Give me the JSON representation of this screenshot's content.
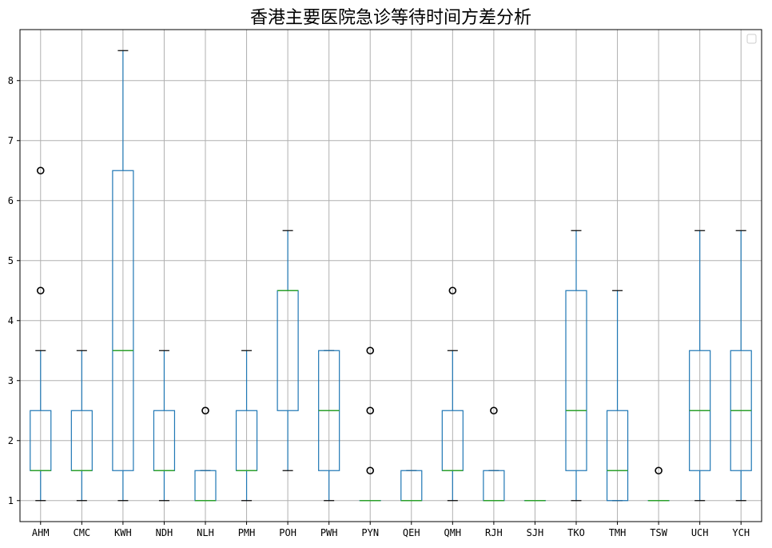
{
  "chart_data": {
    "type": "box",
    "title": "香港主要医院急诊等待时间方差分析",
    "xlabel": "",
    "ylabel": "",
    "ylim": [
      0.65,
      8.85
    ],
    "yticks": [
      1,
      2,
      3,
      4,
      5,
      6,
      7,
      8
    ],
    "grid": true,
    "legend": "top-right (empty)",
    "colors": {
      "box": "#1f77b4",
      "median": "#2ca02c",
      "whisker": "#1f77b4",
      "outlier": "#000000",
      "grid": "#b0b0b0"
    },
    "categories": [
      "AHM",
      "CMC",
      "KWH",
      "NDH",
      "NLH",
      "PMH",
      "POH",
      "PWH",
      "PYN",
      "QEH",
      "QMH",
      "RJH",
      "SJH",
      "TKO",
      "TMH",
      "TSW",
      "UCH",
      "YCH"
    ],
    "boxes": [
      {
        "label": "AHM",
        "whislo": 1.0,
        "q1": 1.5,
        "med": 1.5,
        "q3": 2.5,
        "whishi": 3.5,
        "fliers": [
          4.5,
          6.5
        ]
      },
      {
        "label": "CMC",
        "whislo": 1.0,
        "q1": 1.5,
        "med": 1.5,
        "q3": 2.5,
        "whishi": 3.5,
        "fliers": []
      },
      {
        "label": "KWH",
        "whislo": 1.0,
        "q1": 1.5,
        "med": 3.5,
        "q3": 6.5,
        "whishi": 8.5,
        "fliers": []
      },
      {
        "label": "NDH",
        "whislo": 1.0,
        "q1": 1.5,
        "med": 1.5,
        "q3": 2.5,
        "whishi": 3.5,
        "fliers": []
      },
      {
        "label": "NLH",
        "whislo": 1.0,
        "q1": 1.0,
        "med": 1.0,
        "q3": 1.5,
        "whishi": 1.5,
        "fliers": [
          2.5
        ]
      },
      {
        "label": "PMH",
        "whislo": 1.0,
        "q1": 1.5,
        "med": 1.5,
        "q3": 2.5,
        "whishi": 3.5,
        "fliers": []
      },
      {
        "label": "POH",
        "whislo": 1.5,
        "q1": 2.5,
        "med": 4.5,
        "q3": 4.5,
        "whishi": 5.5,
        "fliers": []
      },
      {
        "label": "PWH",
        "whislo": 1.0,
        "q1": 1.5,
        "med": 2.5,
        "q3": 3.5,
        "whishi": 3.5,
        "fliers": []
      },
      {
        "label": "PYN",
        "whislo": 1.0,
        "q1": 1.0,
        "med": 1.0,
        "q3": 1.0,
        "whishi": 1.0,
        "fliers": [
          1.5,
          2.5,
          3.5
        ]
      },
      {
        "label": "QEH",
        "whislo": 1.0,
        "q1": 1.0,
        "med": 1.0,
        "q3": 1.5,
        "whishi": 1.5,
        "fliers": []
      },
      {
        "label": "QMH",
        "whislo": 1.0,
        "q1": 1.5,
        "med": 1.5,
        "q3": 2.5,
        "whishi": 3.5,
        "fliers": [
          4.5
        ]
      },
      {
        "label": "RJH",
        "whislo": 1.0,
        "q1": 1.0,
        "med": 1.0,
        "q3": 1.5,
        "whishi": 1.5,
        "fliers": [
          2.5
        ]
      },
      {
        "label": "SJH",
        "whislo": 1.0,
        "q1": 1.0,
        "med": 1.0,
        "q3": 1.0,
        "whishi": 1.0,
        "fliers": []
      },
      {
        "label": "TKO",
        "whislo": 1.0,
        "q1": 1.5,
        "med": 2.5,
        "q3": 4.5,
        "whishi": 5.5,
        "fliers": []
      },
      {
        "label": "TMH",
        "whislo": 1.0,
        "q1": 1.0,
        "med": 1.5,
        "q3": 2.5,
        "whishi": 4.5,
        "fliers": []
      },
      {
        "label": "TSW",
        "whislo": 1.0,
        "q1": 1.0,
        "med": 1.0,
        "q3": 1.0,
        "whishi": 1.0,
        "fliers": [
          1.5
        ]
      },
      {
        "label": "UCH",
        "whislo": 1.0,
        "q1": 1.5,
        "med": 2.5,
        "q3": 3.5,
        "whishi": 5.5,
        "fliers": []
      },
      {
        "label": "YCH",
        "whislo": 1.0,
        "q1": 1.5,
        "med": 2.5,
        "q3": 3.5,
        "whishi": 5.5,
        "fliers": []
      }
    ]
  }
}
